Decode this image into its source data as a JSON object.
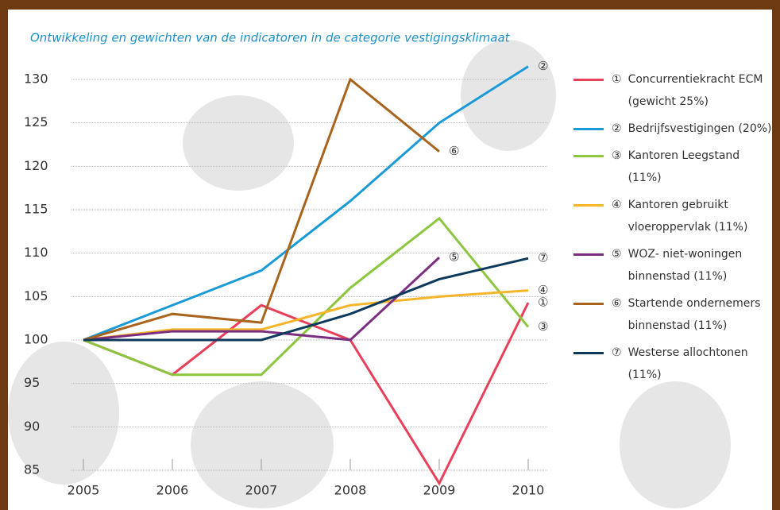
{
  "chart_data": {
    "type": "line",
    "title": "Ontwikkeling en gewichten van de indicatoren in de categorie vestigingsklimaat",
    "x": [
      2005,
      2006,
      2007,
      2008,
      2009,
      2010
    ],
    "xlim": [
      2005,
      2010
    ],
    "xticks": [
      2005,
      2006,
      2007,
      2008,
      2009,
      2010
    ],
    "ylim": [
      85,
      130
    ],
    "yticks": [
      85,
      90,
      95,
      100,
      105,
      110,
      115,
      120,
      125,
      130
    ],
    "grid": true,
    "series": [
      {
        "marker": "①",
        "name": "Concurrentiekracht ECM (gewicht 25%)",
        "color": "#e8405a",
        "values": [
          100,
          96,
          104,
          100,
          83.5,
          104.3
        ]
      },
      {
        "marker": "②",
        "name": "Bedrijfsvestigingen (20%)",
        "color": "#1a9ad6",
        "values": [
          100,
          104,
          108,
          116,
          125,
          131.5
        ]
      },
      {
        "marker": "③",
        "name": "Kantoren Leegstand (11%)",
        "color": "#8cc63f",
        "values": [
          100,
          96,
          96,
          106,
          114,
          101.5
        ]
      },
      {
        "marker": "④",
        "name": "Kantoren gebruikt vloeroppervlak (11%)",
        "color": "#f7b52a",
        "values": [
          100,
          101.2,
          101.2,
          104,
          105,
          105.7
        ]
      },
      {
        "marker": "⑤",
        "name": "WOZ- niet-woningen binnenstad (11%)",
        "color": "#7b2d82",
        "values": [
          100,
          101,
          101,
          100,
          109.5,
          null
        ]
      },
      {
        "marker": "⑥",
        "name": "Startende ondernemers binnenstad (11%)",
        "color": "#a8641c",
        "values": [
          100,
          103,
          102,
          130,
          121.7,
          null
        ]
      },
      {
        "marker": "⑦",
        "name": "Westerse allochtonen (11%)",
        "color": "#0d3a5c",
        "values": [
          100,
          100,
          100,
          103,
          107,
          109.4
        ]
      }
    ]
  }
}
